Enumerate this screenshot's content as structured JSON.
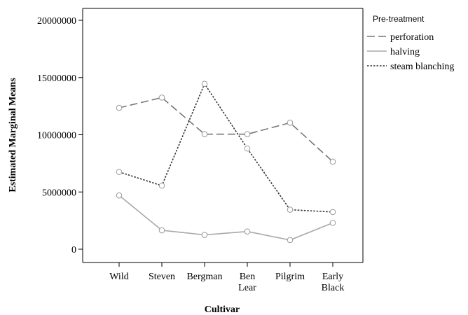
{
  "chart_data": {
    "type": "line",
    "title": "",
    "xlabel": "Cultivar",
    "ylabel": "Estimated Marginal Means",
    "categories": [
      [
        "Wild"
      ],
      [
        "Steven"
      ],
      [
        "Bergman"
      ],
      [
        "Ben",
        "Lear"
      ],
      [
        "Pilgrim"
      ],
      [
        "Early",
        "Black"
      ]
    ],
    "ylim": [
      0,
      20000000
    ],
    "yticks": [
      0,
      5000000,
      10000000,
      15000000,
      20000000
    ],
    "ytick_labels": [
      "0",
      "5000000",
      "10000000",
      "15000000",
      "20000000"
    ],
    "grid": false,
    "legend": {
      "title": "Pre-treatment",
      "position": "top-right"
    },
    "series": [
      {
        "name": "perforation",
        "color": "#777777",
        "dash": "long-dash",
        "values": [
          12350000,
          13250000,
          10050000,
          10050000,
          11050000,
          7650000
        ]
      },
      {
        "name": "halving",
        "color": "#a8a8a8",
        "dash": "solid",
        "values": [
          4700000,
          1650000,
          1250000,
          1550000,
          800000,
          2300000
        ]
      },
      {
        "name": "steam blanching",
        "color": "#333333",
        "dash": "dotted",
        "values": [
          6750000,
          5550000,
          14450000,
          8800000,
          3450000,
          3250000
        ]
      }
    ]
  }
}
